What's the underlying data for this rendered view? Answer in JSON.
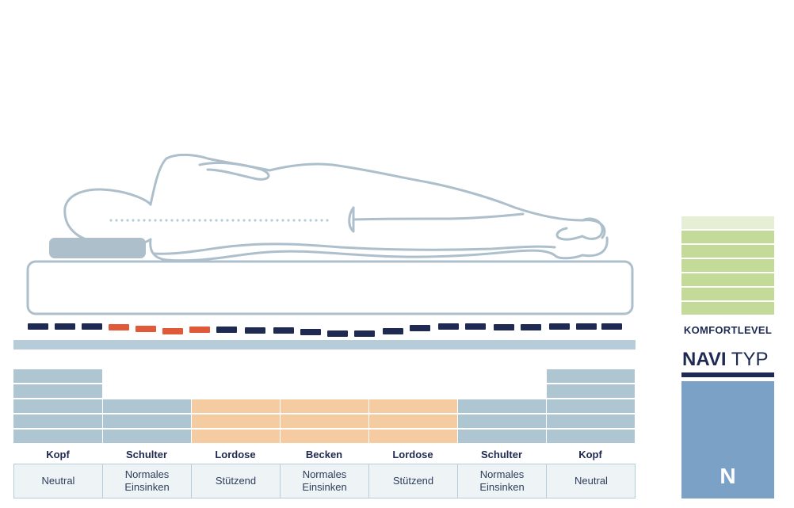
{
  "zones": [
    {
      "name": "Kopf",
      "description": "Neutral",
      "height": 5,
      "color": "#aec5d2"
    },
    {
      "name": "Schulter",
      "description": "Normales\nEinsinken",
      "height": 3,
      "color": "#aec5d2"
    },
    {
      "name": "Lordose",
      "description": "Stützend",
      "height": 3,
      "color": "#f5cca1"
    },
    {
      "name": "Becken",
      "description": "Normales\nEinsinken",
      "height": 3,
      "color": "#f5cca1"
    },
    {
      "name": "Lordose",
      "description": "Stützend",
      "height": 3,
      "color": "#f5cca1"
    },
    {
      "name": "Schulter",
      "description": "Normales\nEinsinken",
      "height": 3,
      "color": "#aec5d2"
    },
    {
      "name": "Kopf",
      "description": "Neutral",
      "height": 5,
      "color": "#aec5d2"
    }
  ],
  "komfortlevel": {
    "label": "KOMFORTLEVEL",
    "total_levels": 7,
    "active_levels": 6,
    "active_color": "#c3da99",
    "inactive_color": "#e6efd6"
  },
  "navi_typ": {
    "title_bold": "NAVI",
    "title_regular": "TYP",
    "letter": "N",
    "box_color": "#7ba1c6"
  },
  "colors": {
    "outline": "#aebfcc",
    "pillow": "#aebfcc",
    "base_bar": "#b7ccd9",
    "spine_dots": "#b7ccd9",
    "dash_navy": "#1e2a52",
    "dash_accent": "#e05a3a"
  }
}
